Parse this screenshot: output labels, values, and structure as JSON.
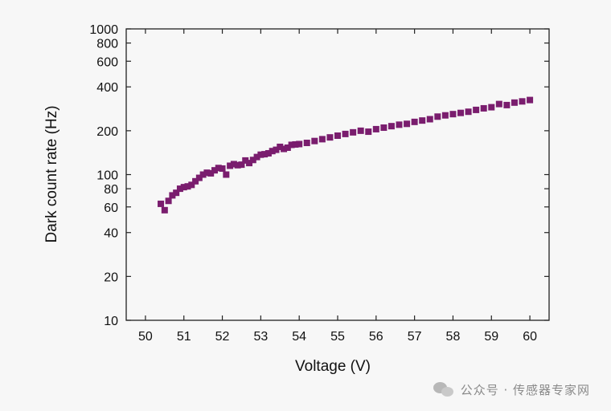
{
  "chart_data": {
    "type": "scatter",
    "title": "",
    "xlabel": "Voltage (V)",
    "ylabel": "Dark count rate (Hz)",
    "xlim": [
      49.5,
      60.5
    ],
    "ylim": [
      10,
      1000
    ],
    "yscale": "log",
    "grid": false,
    "x_ticks": [
      50,
      51,
      52,
      53,
      54,
      55,
      56,
      57,
      58,
      59,
      60
    ],
    "y_ticks": [
      10,
      20,
      40,
      60,
      80,
      100,
      200,
      400,
      600,
      800,
      1000
    ],
    "marker_color": "#7a1d6e",
    "series": [
      {
        "x": [
          50.4,
          50.5,
          50.6,
          50.7,
          50.8,
          50.9,
          51.0,
          51.1,
          51.2,
          51.3,
          51.4,
          51.5,
          51.6,
          51.7,
          51.8,
          51.9,
          52.0,
          52.1,
          52.2,
          52.3,
          52.4,
          52.5,
          52.6,
          52.7,
          52.8,
          52.9,
          53.0,
          53.1,
          53.2,
          53.3,
          53.4,
          53.5,
          53.6,
          53.7,
          53.8,
          53.9,
          54.0,
          54.2,
          54.4,
          54.6,
          54.8,
          55.0,
          55.2,
          55.4,
          55.6,
          55.8,
          56.0,
          56.2,
          56.4,
          56.6,
          56.8,
          57.0,
          57.2,
          57.4,
          57.6,
          57.8,
          58.0,
          58.2,
          58.4,
          58.6,
          58.8,
          59.0,
          59.2,
          59.4,
          59.6,
          59.8,
          60.0
        ],
        "y": [
          63,
          57,
          66,
          72,
          75,
          80,
          82,
          83,
          85,
          90,
          95,
          100,
          103,
          102,
          107,
          111,
          110,
          100,
          115,
          118,
          116,
          117,
          125,
          120,
          126,
          132,
          137,
          138,
          140,
          145,
          148,
          155,
          150,
          153,
          160,
          161,
          162,
          165,
          170,
          175,
          180,
          185,
          190,
          195,
          200,
          197,
          205,
          210,
          215,
          220,
          223,
          230,
          235,
          240,
          250,
          255,
          260,
          265,
          270,
          278,
          285,
          290,
          305,
          300,
          312,
          318,
          325
        ]
      }
    ]
  },
  "watermark": {
    "text": "公众号 · 传感器专家网",
    "logo_icon": "wechat-logo-icon"
  }
}
